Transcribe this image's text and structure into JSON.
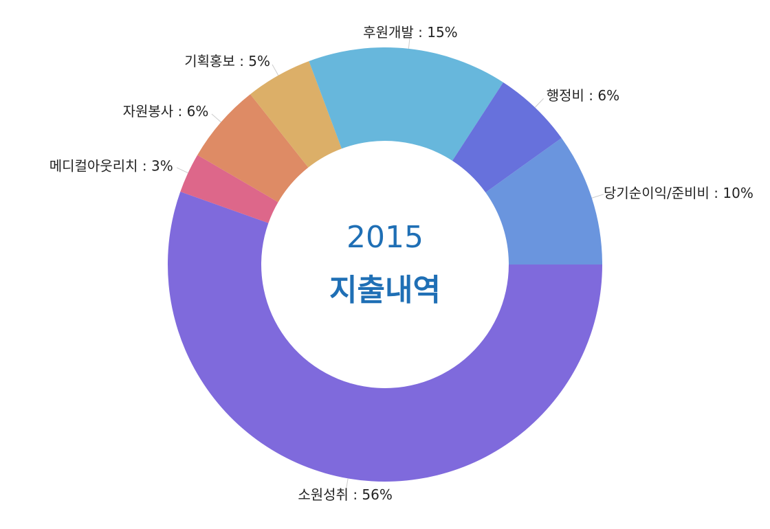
{
  "chart_data": {
    "type": "pie",
    "subtype": "donut",
    "center_text": [
      "2015",
      "지출내역"
    ],
    "slices": [
      {
        "label": "당기순이익/준비비 : 10%",
        "name": "당기순이익/준비비",
        "value": 10,
        "color": "#6a95de"
      },
      {
        "label": "소원성취 : 56%",
        "name": "소원성취",
        "value": 56,
        "color": "#7f6adc"
      },
      {
        "label": "메디컬아웃리치 : 3%",
        "name": "메디컬아웃리치",
        "value": 3,
        "color": "#dd678a"
      },
      {
        "label": "자원봉사 : 6%",
        "name": "자원봉사",
        "value": 6,
        "color": "#de8b65"
      },
      {
        "label": "기획홍보 : 5%",
        "name": "기획홍보",
        "value": 5,
        "color": "#dcaf68"
      },
      {
        "label": "후원개발 : 15%",
        "name": "후원개발",
        "value": 15,
        "color": "#67b7dc"
      },
      {
        "label": "행정비 : 6%",
        "name": "행정비",
        "value": 6,
        "color": "#6771dc"
      }
    ],
    "legend": "none"
  }
}
